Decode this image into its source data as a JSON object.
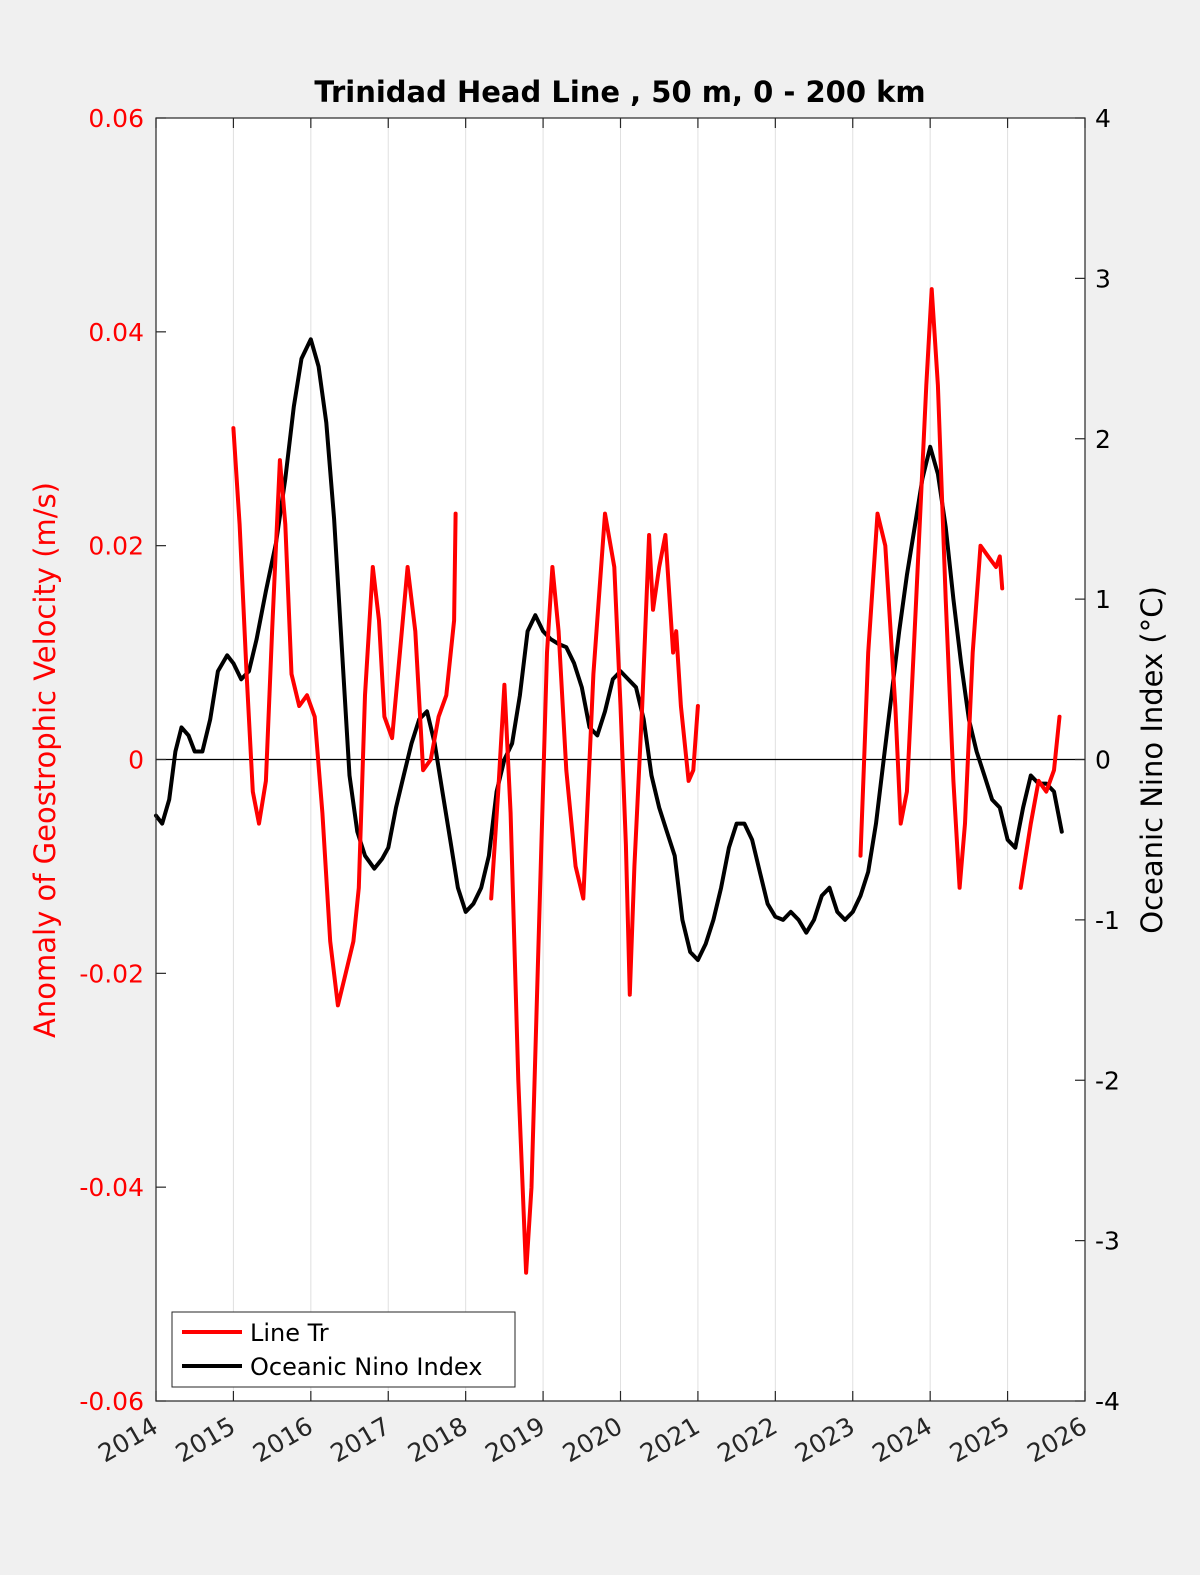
{
  "chart_data": {
    "type": "line",
    "title": "Trinidad Head Line , 50 m, 0 - 200 km",
    "xlabel": "",
    "ylabel_left": "Anomaly of Geostrophic Velocity (m/s)",
    "ylabel_right": "Oceanic Nino Index (°C)",
    "xlim": [
      2014,
      2026
    ],
    "ylim_left": [
      -0.06,
      0.06
    ],
    "ylim_right": [
      -4,
      4
    ],
    "x_ticks": [
      "2014",
      "2015",
      "2016",
      "2017",
      "2018",
      "2019",
      "2020",
      "2021",
      "2022",
      "2023",
      "2024",
      "2025",
      "2026"
    ],
    "y_left_ticks": [
      "-0.06",
      "-0.04",
      "-0.02",
      "0",
      "0.02",
      "0.04",
      "0.06"
    ],
    "y_right_ticks": [
      "-4",
      "-3",
      "-2",
      "-1",
      "0",
      "1",
      "2",
      "3",
      "4"
    ],
    "grid": "vertical",
    "legend_position": "bottom-left",
    "colors": {
      "line_tr": "#ff0000",
      "oni": "#000000",
      "left_axis": "#ff0000",
      "right_axis": "#000000"
    },
    "series": [
      {
        "name": "Line Tr",
        "axis": "left",
        "color": "#ff0000",
        "segments": [
          [
            [
              2015.0,
              0.031
            ],
            [
              2015.08,
              0.022
            ],
            [
              2015.17,
              0.008
            ],
            [
              2015.25,
              -0.003
            ],
            [
              2015.33,
              -0.006
            ],
            [
              2015.42,
              -0.002
            ],
            [
              2015.5,
              0.012
            ],
            [
              2015.6,
              0.028
            ],
            [
              2015.67,
              0.022
            ],
            [
              2015.75,
              0.008
            ],
            [
              2015.85,
              0.005
            ],
            [
              2015.95,
              0.006
            ],
            [
              2016.05,
              0.004
            ],
            [
              2016.15,
              -0.005
            ],
            [
              2016.25,
              -0.017
            ],
            [
              2016.35,
              -0.023
            ],
            [
              2016.45,
              -0.02
            ],
            [
              2016.55,
              -0.017
            ],
            [
              2016.62,
              -0.012
            ],
            [
              2016.7,
              0.006
            ],
            [
              2016.8,
              0.018
            ],
            [
              2016.88,
              0.013
            ],
            [
              2016.95,
              0.004
            ],
            [
              2017.05,
              0.002
            ],
            [
              2017.15,
              0.01
            ],
            [
              2017.25,
              0.018
            ],
            [
              2017.35,
              0.012
            ],
            [
              2017.45,
              -0.001
            ],
            [
              2017.55,
              0.0
            ],
            [
              2017.65,
              0.004
            ],
            [
              2017.75,
              0.006
            ],
            [
              2017.85,
              0.013
            ],
            [
              2017.87,
              0.023
            ]
          ],
          [
            [
              2018.33,
              -0.013
            ],
            [
              2018.42,
              -0.003
            ],
            [
              2018.5,
              0.007
            ],
            [
              2018.58,
              -0.005
            ],
            [
              2018.68,
              -0.03
            ],
            [
              2018.78,
              -0.048
            ],
            [
              2018.85,
              -0.04
            ],
            [
              2018.95,
              -0.015
            ],
            [
              2019.05,
              0.01
            ],
            [
              2019.12,
              0.018
            ],
            [
              2019.2,
              0.012
            ],
            [
              2019.3,
              -0.001
            ],
            [
              2019.42,
              -0.01
            ],
            [
              2019.52,
              -0.013
            ],
            [
              2019.65,
              0.008
            ],
            [
              2019.8,
              0.023
            ],
            [
              2019.92,
              0.018
            ],
            [
              2020.0,
              0.005
            ],
            [
              2020.07,
              -0.008
            ],
            [
              2020.12,
              -0.022
            ],
            [
              2020.18,
              -0.01
            ],
            [
              2020.28,
              0.005
            ],
            [
              2020.37,
              0.021
            ],
            [
              2020.42,
              0.014
            ],
            [
              2020.5,
              0.018
            ],
            [
              2020.58,
              0.021
            ],
            [
              2020.68,
              0.01
            ],
            [
              2020.72,
              0.012
            ],
            [
              2020.78,
              0.005
            ],
            [
              2020.88,
              -0.002
            ],
            [
              2020.94,
              -0.001
            ],
            [
              2021.0,
              0.005
            ]
          ],
          [
            [
              2023.1,
              -0.009
            ],
            [
              2023.2,
              0.01
            ],
            [
              2023.32,
              0.023
            ],
            [
              2023.42,
              0.02
            ],
            [
              2023.55,
              0.005
            ],
            [
              2023.62,
              -0.006
            ],
            [
              2023.7,
              -0.003
            ],
            [
              2023.82,
              0.015
            ],
            [
              2023.95,
              0.035
            ],
            [
              2024.02,
              0.044
            ],
            [
              2024.1,
              0.035
            ],
            [
              2024.2,
              0.015
            ],
            [
              2024.3,
              -0.002
            ],
            [
              2024.38,
              -0.012
            ],
            [
              2024.45,
              -0.006
            ],
            [
              2024.55,
              0.01
            ],
            [
              2024.65,
              0.02
            ],
            [
              2024.75,
              0.019
            ],
            [
              2024.85,
              0.018
            ],
            [
              2024.9,
              0.019
            ],
            [
              2024.93,
              0.016
            ]
          ],
          [
            [
              2025.17,
              -0.012
            ],
            [
              2025.3,
              -0.006
            ],
            [
              2025.4,
              -0.002
            ],
            [
              2025.5,
              -0.003
            ],
            [
              2025.6,
              -0.001
            ],
            [
              2025.67,
              0.004
            ]
          ]
        ]
      },
      {
        "name": "Oceanic Nino Index",
        "axis": "right",
        "color": "#000000",
        "segments": [
          [
            [
              2014.0,
              -0.35
            ],
            [
              2014.08,
              -0.4
            ],
            [
              2014.17,
              -0.25
            ],
            [
              2014.25,
              0.05
            ],
            [
              2014.33,
              0.2
            ],
            [
              2014.42,
              0.15
            ],
            [
              2014.5,
              0.05
            ],
            [
              2014.6,
              0.05
            ],
            [
              2014.7,
              0.25
            ],
            [
              2014.8,
              0.55
            ],
            [
              2014.92,
              0.65
            ],
            [
              2015.0,
              0.6
            ],
            [
              2015.1,
              0.5
            ],
            [
              2015.2,
              0.55
            ],
            [
              2015.3,
              0.75
            ],
            [
              2015.42,
              1.05
            ],
            [
              2015.55,
              1.35
            ],
            [
              2015.67,
              1.75
            ],
            [
              2015.78,
              2.2
            ],
            [
              2015.88,
              2.5
            ],
            [
              2016.0,
              2.62
            ],
            [
              2016.1,
              2.45
            ],
            [
              2016.2,
              2.1
            ],
            [
              2016.3,
              1.5
            ],
            [
              2016.4,
              0.7
            ],
            [
              2016.5,
              -0.1
            ],
            [
              2016.6,
              -0.45
            ],
            [
              2016.7,
              -0.6
            ],
            [
              2016.82,
              -0.68
            ],
            [
              2016.92,
              -0.62
            ],
            [
              2017.0,
              -0.55
            ],
            [
              2017.1,
              -0.3
            ],
            [
              2017.2,
              -0.1
            ],
            [
              2017.3,
              0.1
            ],
            [
              2017.4,
              0.25
            ],
            [
              2017.5,
              0.3
            ],
            [
              2017.6,
              0.1
            ],
            [
              2017.7,
              -0.2
            ],
            [
              2017.8,
              -0.5
            ],
            [
              2017.9,
              -0.8
            ],
            [
              2018.0,
              -0.95
            ],
            [
              2018.1,
              -0.9
            ],
            [
              2018.2,
              -0.8
            ],
            [
              2018.3,
              -0.6
            ],
            [
              2018.4,
              -0.2
            ],
            [
              2018.5,
              0.0
            ],
            [
              2018.6,
              0.1
            ],
            [
              2018.7,
              0.4
            ],
            [
              2018.8,
              0.8
            ],
            [
              2018.9,
              0.9
            ],
            [
              2019.0,
              0.8
            ],
            [
              2019.1,
              0.75
            ],
            [
              2019.2,
              0.72
            ],
            [
              2019.3,
              0.7
            ],
            [
              2019.4,
              0.6
            ],
            [
              2019.5,
              0.45
            ],
            [
              2019.6,
              0.2
            ],
            [
              2019.7,
              0.15
            ],
            [
              2019.8,
              0.3
            ],
            [
              2019.9,
              0.5
            ],
            [
              2020.0,
              0.55
            ],
            [
              2020.1,
              0.5
            ],
            [
              2020.2,
              0.45
            ],
            [
              2020.3,
              0.25
            ],
            [
              2020.4,
              -0.1
            ],
            [
              2020.5,
              -0.3
            ],
            [
              2020.6,
              -0.45
            ],
            [
              2020.7,
              -0.6
            ],
            [
              2020.8,
              -1.0
            ],
            [
              2020.9,
              -1.2
            ],
            [
              2021.0,
              -1.25
            ],
            [
              2021.1,
              -1.15
            ],
            [
              2021.2,
              -1.0
            ],
            [
              2021.3,
              -0.8
            ],
            [
              2021.4,
              -0.55
            ],
            [
              2021.5,
              -0.4
            ],
            [
              2021.6,
              -0.4
            ],
            [
              2021.7,
              -0.5
            ],
            [
              2021.8,
              -0.7
            ],
            [
              2021.9,
              -0.9
            ],
            [
              2022.0,
              -0.98
            ],
            [
              2022.1,
              -1.0
            ],
            [
              2022.2,
              -0.95
            ],
            [
              2022.3,
              -1.0
            ],
            [
              2022.4,
              -1.08
            ],
            [
              2022.5,
              -1.0
            ],
            [
              2022.6,
              -0.85
            ],
            [
              2022.7,
              -0.8
            ],
            [
              2022.8,
              -0.95
            ],
            [
              2022.9,
              -1.0
            ],
            [
              2023.0,
              -0.95
            ],
            [
              2023.1,
              -0.85
            ],
            [
              2023.2,
              -0.7
            ],
            [
              2023.3,
              -0.4
            ],
            [
              2023.4,
              0.0
            ],
            [
              2023.5,
              0.4
            ],
            [
              2023.6,
              0.8
            ],
            [
              2023.7,
              1.15
            ],
            [
              2023.8,
              1.45
            ],
            [
              2023.9,
              1.75
            ],
            [
              2024.0,
              1.95
            ],
            [
              2024.1,
              1.78
            ],
            [
              2024.2,
              1.45
            ],
            [
              2024.3,
              1.0
            ],
            [
              2024.4,
              0.6
            ],
            [
              2024.5,
              0.25
            ],
            [
              2024.6,
              0.05
            ],
            [
              2024.7,
              -0.1
            ],
            [
              2024.8,
              -0.25
            ],
            [
              2024.9,
              -0.3
            ],
            [
              2025.0,
              -0.5
            ],
            [
              2025.1,
              -0.55
            ],
            [
              2025.2,
              -0.3
            ],
            [
              2025.3,
              -0.1
            ],
            [
              2025.4,
              -0.15
            ],
            [
              2025.5,
              -0.15
            ],
            [
              2025.6,
              -0.2
            ],
            [
              2025.7,
              -0.45
            ]
          ]
        ]
      }
    ]
  }
}
